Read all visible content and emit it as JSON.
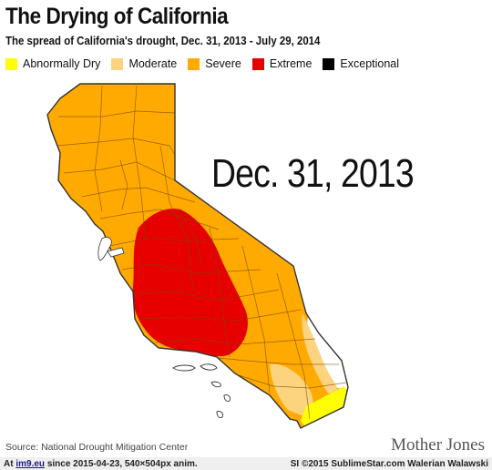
{
  "title": "The Drying of California",
  "subtitle": "The spread of California's drought, Dec. 31, 2013 - July 29, 2014",
  "legend": [
    {
      "label": "Abnormally Dry",
      "color": "#ffff00"
    },
    {
      "label": "Moderate",
      "color": "#fcd37f"
    },
    {
      "label": "Severe",
      "color": "#ffaa00"
    },
    {
      "label": "Extreme",
      "color": "#e60000"
    },
    {
      "label": "Exceptional",
      "color": "#000000"
    }
  ],
  "date_label": "Dec. 31, 2013",
  "source": "Source: National Drought Mitigation Center",
  "brand": "Mother Jones",
  "footer": {
    "prefix": "At",
    "site": "im9.eu",
    "info": "since 2015-04-23, 540×504px anim.",
    "credit": "SI ©2015 SublimeStar.com Walerian Walawski"
  }
}
